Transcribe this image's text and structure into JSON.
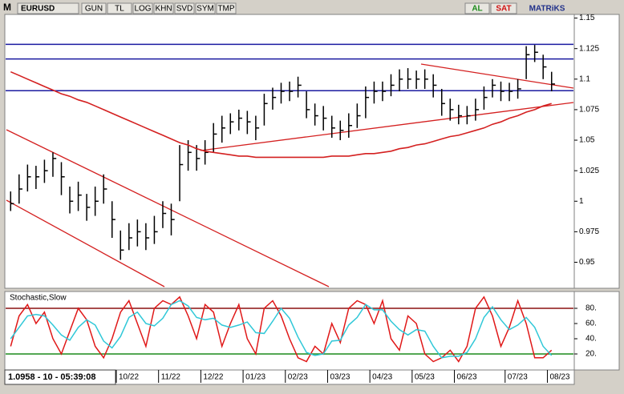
{
  "toolbar": {
    "logo": "M",
    "buttons": [
      "GUN",
      "TL",
      "LOG",
      "KHN",
      "SVD",
      "SYM",
      "TMP"
    ],
    "buy": "AL",
    "sell": "SAT",
    "brand": "MATRiKS",
    "status": "1.0958 - 10 - 05:39:08"
  },
  "chart_data": {
    "type": "ohlc",
    "title": "EURUSD",
    "color": "#000000",
    "categories": [
      null,
      null,
      null,
      null,
      null,
      null,
      null,
      null,
      null,
      null,
      null,
      null,
      null,
      "10/22",
      null,
      null,
      null,
      null,
      "11/22",
      null,
      null,
      null,
      null,
      "12/22",
      null,
      null,
      null,
      null,
      "01/23",
      null,
      null,
      null,
      null,
      "02/23",
      null,
      null,
      null,
      null,
      "03/23",
      null,
      null,
      null,
      null,
      "04/23",
      null,
      null,
      null,
      null,
      "05/23",
      null,
      null,
      null,
      null,
      "06/23",
      null,
      null,
      null,
      null,
      null,
      "07/23",
      null,
      null,
      null,
      null,
      "08/23"
    ],
    "high": [
      1.008,
      1.022,
      1.03,
      1.029,
      1.034,
      1.04,
      1.032,
      1.012,
      1.016,
      1.006,
      1.012,
      1.022,
      1.0,
      0.976,
      0.982,
      0.985,
      0.982,
      0.988,
      1.0,
      0.998,
      1.046,
      1.05,
      1.046,
      1.05,
      1.064,
      1.07,
      1.072,
      1.075,
      1.074,
      1.07,
      1.088,
      1.093,
      1.097,
      1.098,
      1.102,
      1.09,
      1.08,
      1.078,
      1.07,
      1.066,
      1.072,
      1.08,
      1.094,
      1.098,
      1.098,
      1.104,
      1.108,
      1.109,
      1.107,
      1.108,
      1.104,
      1.092,
      1.084,
      1.079,
      1.078,
      1.084,
      1.094,
      1.1,
      1.098,
      1.097,
      1.1,
      1.127,
      1.128,
      1.12,
      1.106
    ],
    "low": [
      0.992,
      0.998,
      1.008,
      1.01,
      1.015,
      1.02,
      1.005,
      0.99,
      0.992,
      0.984,
      0.988,
      0.998,
      0.97,
      0.952,
      0.96,
      0.963,
      0.96,
      0.965,
      0.978,
      0.972,
      1.0,
      1.025,
      1.025,
      1.03,
      1.04,
      1.048,
      1.055,
      1.058,
      1.055,
      1.05,
      1.062,
      1.075,
      1.08,
      1.082,
      1.085,
      1.068,
      1.062,
      1.058,
      1.052,
      1.05,
      1.052,
      1.06,
      1.068,
      1.08,
      1.082,
      1.086,
      1.09,
      1.092,
      1.092,
      1.092,
      1.085,
      1.07,
      1.066,
      1.063,
      1.063,
      1.066,
      1.075,
      1.085,
      1.082,
      1.082,
      1.084,
      1.1,
      1.114,
      1.1,
      1.09
    ],
    "close": [
      0.998,
      1.01,
      1.02,
      1.02,
      1.025,
      1.035,
      1.02,
      1.0,
      1.005,
      0.995,
      1.0,
      1.01,
      0.985,
      0.96,
      0.97,
      0.975,
      0.97,
      0.975,
      0.99,
      0.985,
      1.03,
      1.04,
      1.035,
      1.04,
      1.055,
      1.06,
      1.065,
      1.068,
      1.065,
      1.06,
      1.08,
      1.085,
      1.09,
      1.09,
      1.095,
      1.075,
      1.07,
      1.068,
      1.06,
      1.058,
      1.062,
      1.07,
      1.085,
      1.09,
      1.09,
      1.095,
      1.1,
      1.1,
      1.1,
      1.1,
      1.095,
      1.08,
      1.075,
      1.07,
      1.07,
      1.075,
      1.085,
      1.095,
      1.09,
      1.09,
      1.092,
      1.12,
      1.122,
      1.11,
      1.096
    ],
    "ma": {
      "color": "#d42020",
      "values": [
        1.106,
        1.103,
        1.1,
        1.097,
        1.094,
        1.091,
        1.088,
        1.086,
        1.083,
        1.081,
        1.078,
        1.075,
        1.072,
        1.069,
        1.066,
        1.063,
        1.06,
        1.057,
        1.054,
        1.051,
        1.048,
        1.046,
        1.043,
        1.041,
        1.04,
        1.039,
        1.038,
        1.037,
        1.037,
        1.036,
        1.036,
        1.036,
        1.036,
        1.036,
        1.036,
        1.036,
        1.036,
        1.036,
        1.037,
        1.037,
        1.037,
        1.038,
        1.039,
        1.039,
        1.04,
        1.041,
        1.043,
        1.044,
        1.046,
        1.047,
        1.049,
        1.051,
        1.053,
        1.054,
        1.056,
        1.058,
        1.06,
        1.063,
        1.065,
        1.068,
        1.07,
        1.073,
        1.075,
        1.078,
        1.08
      ]
    },
    "levels": [
      {
        "value": 1.1285,
        "color": "#1a1aa0"
      },
      {
        "value": 1.1165,
        "color": "#1a1aa0"
      },
      {
        "value": 1.0905,
        "color": "#1a1aa0"
      }
    ],
    "ylim": [
      0.93,
      1.153
    ],
    "yticks": [
      0.95,
      0.975,
      1,
      1.025,
      1.05,
      1.075,
      1.1,
      1.125,
      1.15
    ],
    "indicator": {
      "type": "line",
      "title": "Stochastic,Slow",
      "ylim": [
        0,
        100
      ],
      "yticks": [
        {
          "value": 20,
          "label": "20."
        },
        {
          "value": 40,
          "label": "40."
        },
        {
          "value": 60,
          "label": "60."
        },
        {
          "value": 80,
          "label": "80."
        }
      ],
      "levels": [
        {
          "value": 80,
          "color": "#8b1010"
        },
        {
          "value": 20,
          "color": "#1a8a1a"
        }
      ],
      "series": [
        {
          "color": "#e01818",
          "values": [
            30,
            70,
            85,
            60,
            75,
            40,
            20,
            50,
            80,
            65,
            30,
            15,
            40,
            75,
            90,
            60,
            30,
            80,
            90,
            85,
            95,
            70,
            40,
            85,
            75,
            30,
            60,
            85,
            40,
            20,
            80,
            90,
            70,
            40,
            15,
            10,
            30,
            20,
            60,
            35,
            80,
            90,
            85,
            60,
            90,
            40,
            25,
            70,
            60,
            20,
            10,
            15,
            25,
            10,
            30,
            80,
            95,
            70,
            30,
            55,
            90,
            60,
            15,
            15,
            25
          ]
        },
        {
          "color": "#30c8d8",
          "values": [
            40,
            55,
            70,
            72,
            70,
            58,
            45,
            38,
            55,
            65,
            58,
            37,
            28,
            43,
            68,
            75,
            60,
            57,
            67,
            85,
            90,
            83,
            68,
            65,
            67,
            58,
            55,
            58,
            62,
            48,
            47,
            63,
            80,
            67,
            42,
            22,
            18,
            20,
            37,
            38,
            58,
            68,
            85,
            78,
            78,
            63,
            52,
            45,
            52,
            50,
            30,
            15,
            17,
            17,
            22,
            40,
            68,
            82,
            65,
            52,
            58,
            68,
            55,
            30,
            18
          ]
        }
      ]
    }
  }
}
